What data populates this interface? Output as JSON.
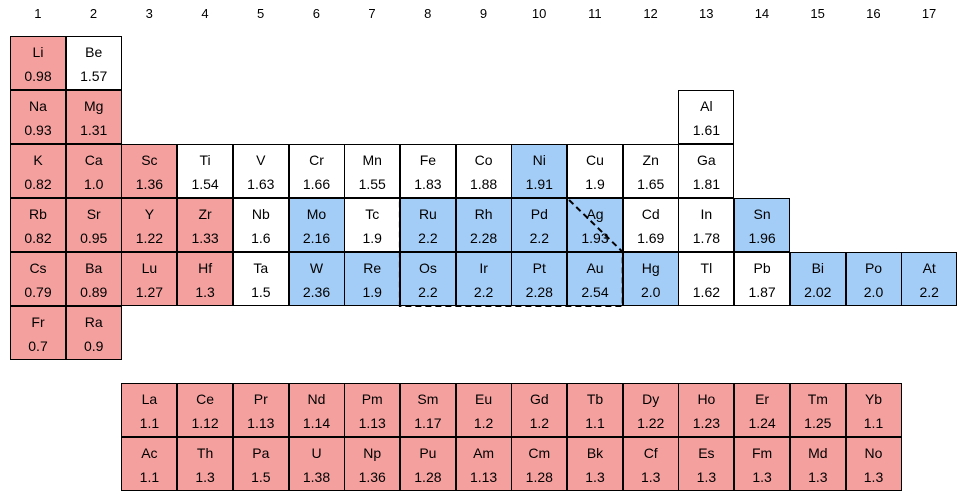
{
  "colors": {
    "red": "#f4a09e",
    "blue": "#a3cdf6",
    "white": "#ffffff"
  },
  "groups": [
    "1",
    "2",
    "3",
    "4",
    "5",
    "6",
    "7",
    "8",
    "9",
    "10",
    "11",
    "12",
    "13",
    "14",
    "15",
    "16",
    "17"
  ],
  "elements": [
    {
      "symbol": "Li",
      "value": "0.98",
      "row": 1,
      "col": 1,
      "color": "red"
    },
    {
      "symbol": "Be",
      "value": "1.57",
      "row": 1,
      "col": 2,
      "color": "white"
    },
    {
      "symbol": "Na",
      "value": "0.93",
      "row": 2,
      "col": 1,
      "color": "red"
    },
    {
      "symbol": "Mg",
      "value": "1.31",
      "row": 2,
      "col": 2,
      "color": "red"
    },
    {
      "symbol": "Al",
      "value": "1.61",
      "row": 2,
      "col": 13,
      "color": "white"
    },
    {
      "symbol": "K",
      "value": "0.82",
      "row": 3,
      "col": 1,
      "color": "red"
    },
    {
      "symbol": "Ca",
      "value": "1.0",
      "row": 3,
      "col": 2,
      "color": "red"
    },
    {
      "symbol": "Sc",
      "value": "1.36",
      "row": 3,
      "col": 3,
      "color": "red"
    },
    {
      "symbol": "Ti",
      "value": "1.54",
      "row": 3,
      "col": 4,
      "color": "white"
    },
    {
      "symbol": "V",
      "value": "1.63",
      "row": 3,
      "col": 5,
      "color": "white"
    },
    {
      "symbol": "Cr",
      "value": "1.66",
      "row": 3,
      "col": 6,
      "color": "white"
    },
    {
      "symbol": "Mn",
      "value": "1.55",
      "row": 3,
      "col": 7,
      "color": "white"
    },
    {
      "symbol": "Fe",
      "value": "1.83",
      "row": 3,
      "col": 8,
      "color": "white"
    },
    {
      "symbol": "Co",
      "value": "1.88",
      "row": 3,
      "col": 9,
      "color": "white"
    },
    {
      "symbol": "Ni",
      "value": "1.91",
      "row": 3,
      "col": 10,
      "color": "blue"
    },
    {
      "symbol": "Cu",
      "value": "1.9",
      "row": 3,
      "col": 11,
      "color": "white"
    },
    {
      "symbol": "Zn",
      "value": "1.65",
      "row": 3,
      "col": 12,
      "color": "white"
    },
    {
      "symbol": "Ga",
      "value": "1.81",
      "row": 3,
      "col": 13,
      "color": "white"
    },
    {
      "symbol": "Rb",
      "value": "0.82",
      "row": 4,
      "col": 1,
      "color": "red"
    },
    {
      "symbol": "Sr",
      "value": "0.95",
      "row": 4,
      "col": 2,
      "color": "red"
    },
    {
      "symbol": "Y",
      "value": "1.22",
      "row": 4,
      "col": 3,
      "color": "red"
    },
    {
      "symbol": "Zr",
      "value": "1.33",
      "row": 4,
      "col": 4,
      "color": "red"
    },
    {
      "symbol": "Nb",
      "value": "1.6",
      "row": 4,
      "col": 5,
      "color": "white"
    },
    {
      "symbol": "Mo",
      "value": "2.16",
      "row": 4,
      "col": 6,
      "color": "blue"
    },
    {
      "symbol": "Tc",
      "value": "1.9",
      "row": 4,
      "col": 7,
      "color": "white"
    },
    {
      "symbol": "Ru",
      "value": "2.2",
      "row": 4,
      "col": 8,
      "color": "blue"
    },
    {
      "symbol": "Rh",
      "value": "2.28",
      "row": 4,
      "col": 9,
      "color": "blue"
    },
    {
      "symbol": "Pd",
      "value": "2.2",
      "row": 4,
      "col": 10,
      "color": "blue"
    },
    {
      "symbol": "Ag",
      "value": "1.93",
      "row": 4,
      "col": 11,
      "color": "blue"
    },
    {
      "symbol": "Cd",
      "value": "1.69",
      "row": 4,
      "col": 12,
      "color": "white"
    },
    {
      "symbol": "In",
      "value": "1.78",
      "row": 4,
      "col": 13,
      "color": "white"
    },
    {
      "symbol": "Sn",
      "value": "1.96",
      "row": 4,
      "col": 14,
      "color": "blue"
    },
    {
      "symbol": "Cs",
      "value": "0.79",
      "row": 5,
      "col": 1,
      "color": "red"
    },
    {
      "symbol": "Ba",
      "value": "0.89",
      "row": 5,
      "col": 2,
      "color": "red"
    },
    {
      "symbol": "Lu",
      "value": "1.27",
      "row": 5,
      "col": 3,
      "color": "red"
    },
    {
      "symbol": "Hf",
      "value": "1.3",
      "row": 5,
      "col": 4,
      "color": "red"
    },
    {
      "symbol": "Ta",
      "value": "1.5",
      "row": 5,
      "col": 5,
      "color": "white"
    },
    {
      "symbol": "W",
      "value": "2.36",
      "row": 5,
      "col": 6,
      "color": "blue"
    },
    {
      "symbol": "Re",
      "value": "1.9",
      "row": 5,
      "col": 7,
      "color": "blue"
    },
    {
      "symbol": "Os",
      "value": "2.2",
      "row": 5,
      "col": 8,
      "color": "blue"
    },
    {
      "symbol": "Ir",
      "value": "2.2",
      "row": 5,
      "col": 9,
      "color": "blue"
    },
    {
      "symbol": "Pt",
      "value": "2.28",
      "row": 5,
      "col": 10,
      "color": "blue"
    },
    {
      "symbol": "Au",
      "value": "2.54",
      "row": 5,
      "col": 11,
      "color": "blue"
    },
    {
      "symbol": "Hg",
      "value": "2.0",
      "row": 5,
      "col": 12,
      "color": "blue"
    },
    {
      "symbol": "Tl",
      "value": "1.62",
      "row": 5,
      "col": 13,
      "color": "white"
    },
    {
      "symbol": "Pb",
      "value": "1.87",
      "row": 5,
      "col": 14,
      "color": "white"
    },
    {
      "symbol": "Bi",
      "value": "2.02",
      "row": 5,
      "col": 15,
      "color": "blue"
    },
    {
      "symbol": "Po",
      "value": "2.0",
      "row": 5,
      "col": 16,
      "color": "blue"
    },
    {
      "symbol": "At",
      "value": "2.2",
      "row": 5,
      "col": 17,
      "color": "blue"
    },
    {
      "symbol": "Fr",
      "value": "0.7",
      "row": 6,
      "col": 1,
      "color": "red"
    },
    {
      "symbol": "Ra",
      "value": "0.9",
      "row": 6,
      "col": 2,
      "color": "red"
    },
    {
      "symbol": "La",
      "value": "1.1",
      "row": 8,
      "col": 3,
      "color": "red"
    },
    {
      "symbol": "Ce",
      "value": "1.12",
      "row": 8,
      "col": 4,
      "color": "red"
    },
    {
      "symbol": "Pr",
      "value": "1.13",
      "row": 8,
      "col": 5,
      "color": "red"
    },
    {
      "symbol": "Nd",
      "value": "1.14",
      "row": 8,
      "col": 6,
      "color": "red"
    },
    {
      "symbol": "Pm",
      "value": "1.13",
      "row": 8,
      "col": 7,
      "color": "red"
    },
    {
      "symbol": "Sm",
      "value": "1.17",
      "row": 8,
      "col": 8,
      "color": "red"
    },
    {
      "symbol": "Eu",
      "value": "1.2",
      "row": 8,
      "col": 9,
      "color": "red"
    },
    {
      "symbol": "Gd",
      "value": "1.2",
      "row": 8,
      "col": 10,
      "color": "red"
    },
    {
      "symbol": "Tb",
      "value": "1.1",
      "row": 8,
      "col": 11,
      "color": "red"
    },
    {
      "symbol": "Dy",
      "value": "1.22",
      "row": 8,
      "col": 12,
      "color": "red"
    },
    {
      "symbol": "Ho",
      "value": "1.23",
      "row": 8,
      "col": 13,
      "color": "red"
    },
    {
      "symbol": "Er",
      "value": "1.24",
      "row": 8,
      "col": 14,
      "color": "red"
    },
    {
      "symbol": "Tm",
      "value": "1.25",
      "row": 8,
      "col": 15,
      "color": "red"
    },
    {
      "symbol": "Yb",
      "value": "1.1",
      "row": 8,
      "col": 16,
      "color": "red"
    },
    {
      "symbol": "Ac",
      "value": "1.1",
      "row": 9,
      "col": 3,
      "color": "red"
    },
    {
      "symbol": "Th",
      "value": "1.3",
      "row": 9,
      "col": 4,
      "color": "red"
    },
    {
      "symbol": "Pa",
      "value": "1.5",
      "row": 9,
      "col": 5,
      "color": "red"
    },
    {
      "symbol": "U",
      "value": "1.38",
      "row": 9,
      "col": 6,
      "color": "red"
    },
    {
      "symbol": "Np",
      "value": "1.36",
      "row": 9,
      "col": 7,
      "color": "red"
    },
    {
      "symbol": "Pu",
      "value": "1.28",
      "row": 9,
      "col": 8,
      "color": "red"
    },
    {
      "symbol": "Am",
      "value": "1.13",
      "row": 9,
      "col": 9,
      "color": "red"
    },
    {
      "symbol": "Cm",
      "value": "1.28",
      "row": 9,
      "col": 10,
      "color": "red"
    },
    {
      "symbol": "Bk",
      "value": "1.3",
      "row": 9,
      "col": 11,
      "color": "red"
    },
    {
      "symbol": "Cf",
      "value": "1.3",
      "row": 9,
      "col": 12,
      "color": "red"
    },
    {
      "symbol": "Es",
      "value": "1.3",
      "row": 9,
      "col": 13,
      "color": "red"
    },
    {
      "symbol": "Fm",
      "value": "1.3",
      "row": 9,
      "col": 14,
      "color": "red"
    },
    {
      "symbol": "Md",
      "value": "1.3",
      "row": 9,
      "col": 15,
      "color": "red"
    },
    {
      "symbol": "No",
      "value": "1.3",
      "row": 9,
      "col": 16,
      "color": "red"
    }
  ]
}
